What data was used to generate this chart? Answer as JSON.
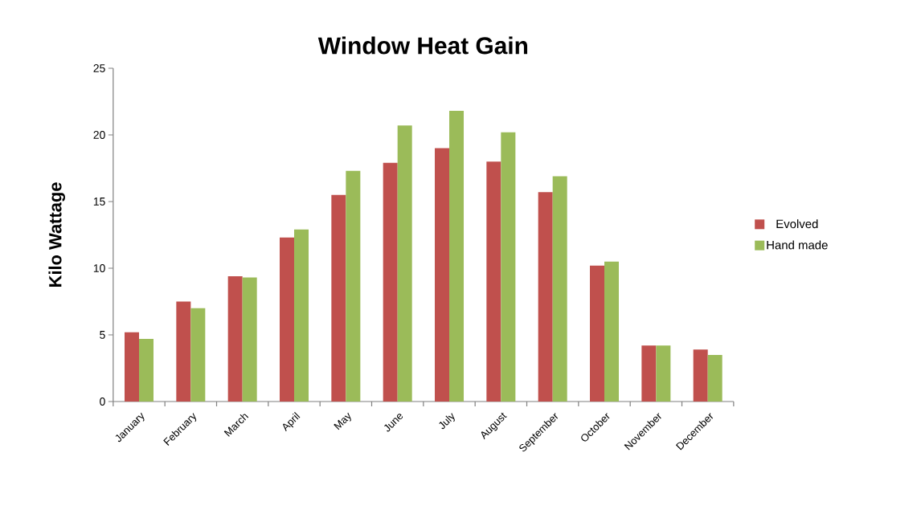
{
  "chart_data": {
    "type": "bar",
    "title": "Window Heat Gain",
    "ylabel": "Kilo Wattage",
    "categories": [
      "January",
      "February",
      "March",
      "April",
      "May",
      "June",
      "July",
      "August",
      "September",
      "October",
      "November",
      "December"
    ],
    "series": [
      {
        "name": "Evolved",
        "color": "#c0504d",
        "values": [
          5.2,
          7.5,
          9.4,
          12.3,
          15.5,
          17.9,
          19.0,
          18.0,
          15.7,
          10.2,
          4.2,
          3.9
        ]
      },
      {
        "name": "Hand made",
        "color": "#9bbb59",
        "values": [
          4.7,
          7.0,
          9.3,
          12.9,
          17.3,
          20.7,
          21.8,
          20.2,
          16.9,
          10.5,
          4.2,
          3.5
        ]
      }
    ],
    "ylim": [
      0,
      25
    ],
    "yticks": [
      0,
      5,
      10,
      15,
      20,
      25
    ],
    "grid": false,
    "legend": "right"
  }
}
